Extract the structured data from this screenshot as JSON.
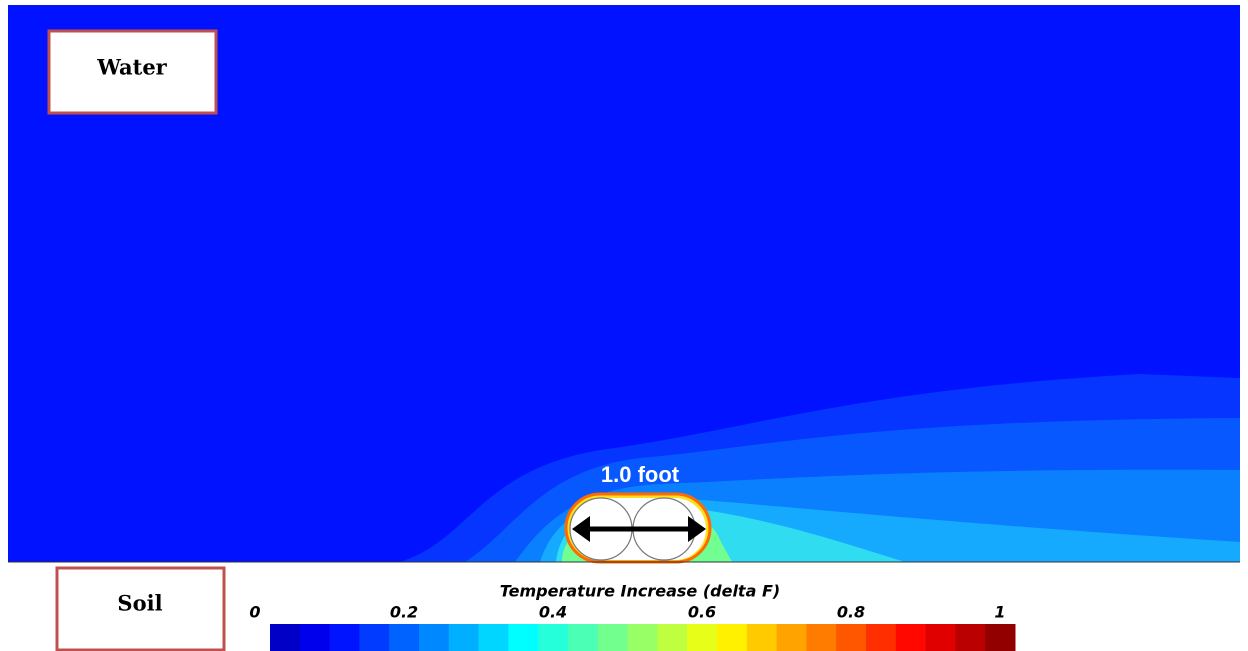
{
  "chart_data": {
    "type": "contour",
    "title": "Temperature Increase (delta F)",
    "clim": [
      0,
      1
    ],
    "cticks": [
      0,
      0.2,
      0.4,
      0.6,
      0.8,
      1
    ],
    "annotations": [
      "Water",
      "Soil",
      "1.0 foot"
    ]
  }
}
